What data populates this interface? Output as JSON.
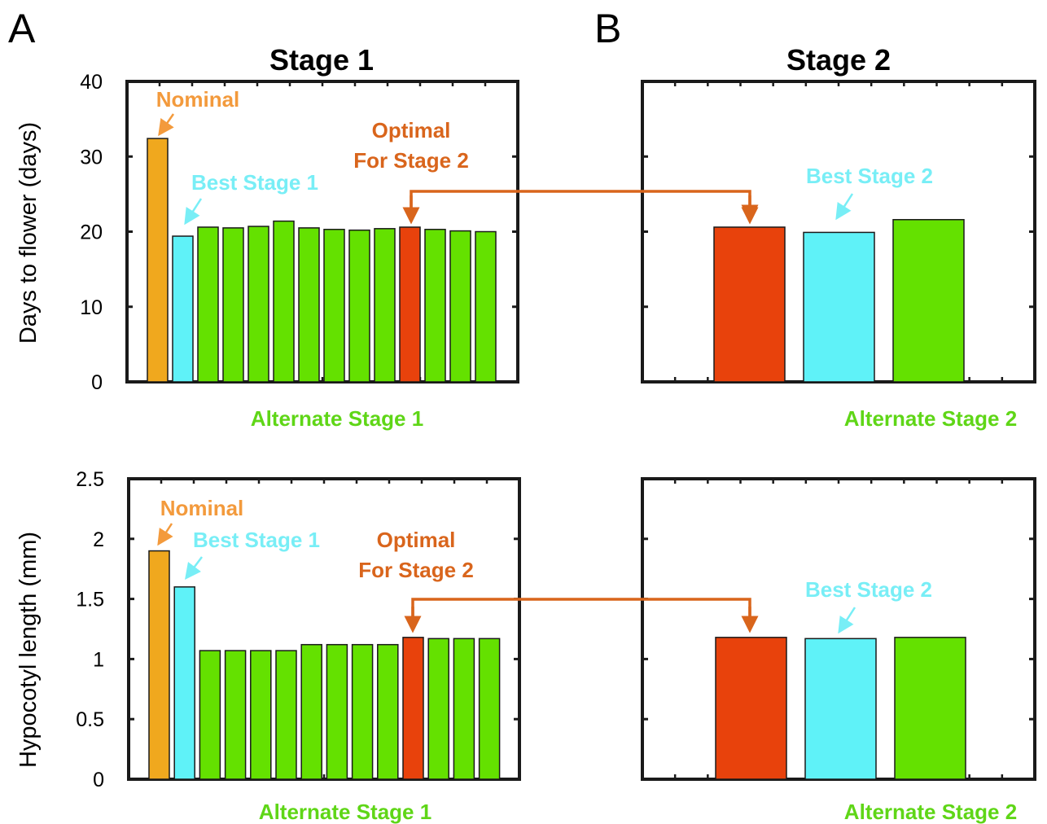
{
  "panels": {
    "a_letter": "A",
    "b_letter": "B",
    "stage1_title": "Stage 1",
    "stage2_title": "Stage 2"
  },
  "colors": {
    "nominal": "#f0a81e",
    "best": "#5ff2f8",
    "alternate": "#64e100",
    "optimal": "#e8420c",
    "nominal_text": "#f39a3c",
    "best_text": "#78eef6",
    "optimal_text": "#d9651c",
    "alternate_text": "#5fd617",
    "arrow": "#d9651c"
  },
  "chart_data": [
    {
      "type": "bar",
      "panel": "A",
      "stage": "Stage 1",
      "ylabel": "Days to flower (days)",
      "xlabel": "Alternate Stage 1",
      "ylim": [
        0,
        40
      ],
      "yticks": [
        "0",
        "10",
        "20",
        "30",
        "40"
      ],
      "values": [
        32.4,
        19.4,
        20.6,
        20.5,
        20.7,
        21.4,
        20.5,
        20.3,
        20.2,
        20.4,
        20.6,
        20.3,
        20.1,
        20.0
      ],
      "kinds": [
        "nominal",
        "best",
        "alt",
        "alt",
        "alt",
        "alt",
        "alt",
        "alt",
        "alt",
        "alt",
        "optimal",
        "alt",
        "alt",
        "alt"
      ],
      "annotations": {
        "nominal": "Nominal",
        "best": "Best Stage 1",
        "optimal_line1": "Optimal",
        "optimal_line2": "For Stage 2"
      }
    },
    {
      "type": "bar",
      "panel": "B",
      "stage": "Stage 2",
      "xlabel": "Alternate Stage 2",
      "ylim": [
        0,
        40
      ],
      "values": [
        20.6,
        19.9,
        21.6
      ],
      "kinds": [
        "optimal",
        "best",
        "alt"
      ],
      "annotations": {
        "best": "Best Stage 2"
      }
    },
    {
      "type": "bar",
      "panel": "A",
      "stage": "Stage 1",
      "ylabel": "Hypocotyl length (mm)",
      "xlabel": "Alternate Stage 1",
      "ylim": [
        0,
        2.5
      ],
      "yticks": [
        "0",
        "0.5",
        "1",
        "1.5",
        "2",
        "2.5"
      ],
      "values": [
        1.9,
        1.6,
        1.07,
        1.07,
        1.07,
        1.07,
        1.12,
        1.12,
        1.12,
        1.12,
        1.18,
        1.17,
        1.17,
        1.17
      ],
      "kinds": [
        "nominal",
        "best",
        "alt",
        "alt",
        "alt",
        "alt",
        "alt",
        "alt",
        "alt",
        "alt",
        "optimal",
        "alt",
        "alt",
        "alt"
      ],
      "annotations": {
        "nominal": "Nominal",
        "best": "Best Stage 1",
        "optimal_line1": "Optimal",
        "optimal_line2": "For Stage 2"
      }
    },
    {
      "type": "bar",
      "panel": "B",
      "stage": "Stage 2",
      "xlabel": "Alternate Stage 2",
      "ylim": [
        0,
        2.5
      ],
      "values": [
        1.18,
        1.17,
        1.18
      ],
      "kinds": [
        "optimal",
        "best",
        "alt"
      ],
      "annotations": {
        "best": "Best Stage 2"
      }
    }
  ]
}
